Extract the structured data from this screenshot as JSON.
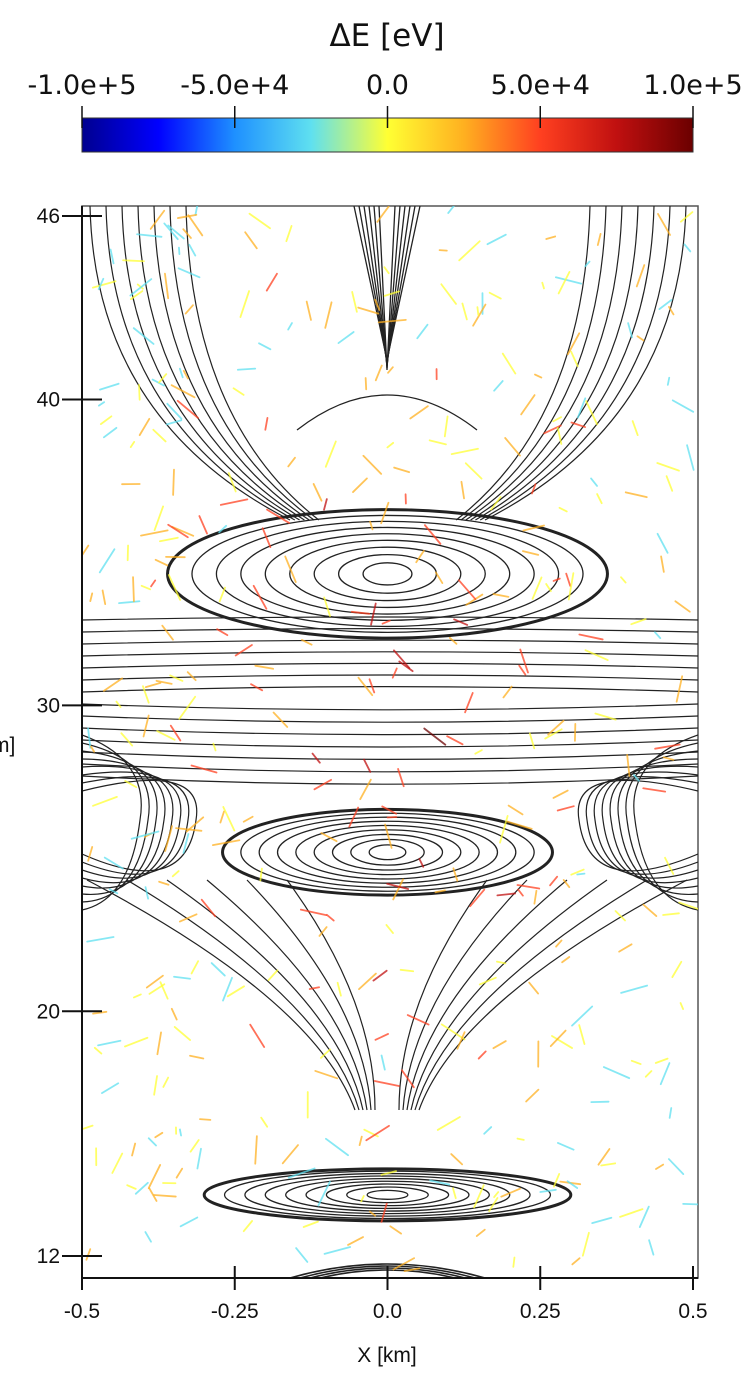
{
  "chart_data": {
    "type": "contour",
    "description_series": "magnetic field lines with energy-change streak markers",
    "colorbar": {
      "title": "ΔE [eV]",
      "range": [
        -100000,
        100000
      ],
      "tick_values": [
        -100000,
        -50000,
        0,
        50000,
        100000
      ],
      "tick_labels": [
        "-1.0e+5",
        "-5.0e+4",
        "0.0",
        "5.0e+4",
        "1.0e+5"
      ],
      "colormap": [
        "#00008f",
        "#0000ff",
        "#1e90ff",
        "#5fe0f0",
        "#ffff33",
        "#ffb020",
        "#ff4020",
        "#c01010",
        "#6b0000"
      ]
    },
    "x_axis": {
      "label": "X [km]",
      "range": [
        -0.5,
        0.5
      ],
      "tick_values": [
        -0.5,
        -0.25,
        0.0,
        0.25,
        0.5
      ],
      "tick_labels": [
        "-0.5",
        "-0.25",
        "0.0",
        "0.25",
        "0.5"
      ]
    },
    "y_axis": {
      "label": "m]",
      "range": [
        11.5,
        46.3
      ],
      "tick_values": [
        12,
        20,
        30,
        40,
        46
      ],
      "tick_labels": [
        "12",
        "20",
        "30",
        "40",
        "46"
      ]
    },
    "islands": [
      {
        "x": 0.0,
        "y": 34.3,
        "rx": 0.36,
        "ry": 2.1
      },
      {
        "x": 0.0,
        "y": 25.2,
        "rx": 0.27,
        "ry": 1.4
      },
      {
        "x": 0.0,
        "y": 14.0,
        "rx": 0.3,
        "ry": 0.85
      }
    ],
    "grid": false,
    "legend": "none"
  }
}
